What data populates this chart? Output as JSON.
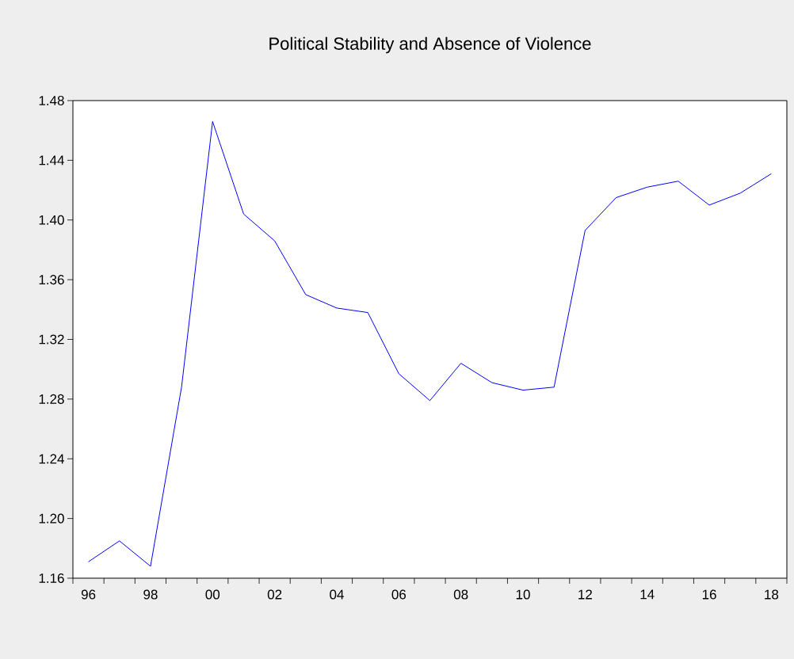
{
  "chart_data": {
    "type": "line",
    "title": "Political Stability and Absence of Violence",
    "x": [
      1996,
      1997,
      1998,
      1999,
      2000,
      2001,
      2002,
      2003,
      2004,
      2005,
      2006,
      2007,
      2008,
      2009,
      2010,
      2011,
      2012,
      2013,
      2014,
      2015,
      2016,
      2017,
      2018
    ],
    "series": [
      {
        "color": "#0000ff",
        "values": [
          1.171,
          1.185,
          1.168,
          1.288,
          1.466,
          1.404,
          1.386,
          1.35,
          1.341,
          1.338,
          1.297,
          1.279,
          1.304,
          1.291,
          1.286,
          1.288,
          1.393,
          1.415,
          1.422,
          1.426,
          1.41,
          1.418,
          1.431
        ]
      }
    ],
    "xlim": [
      1995.5,
      2018.5
    ],
    "xticks": [
      {
        "value": 1996,
        "label": "96"
      },
      {
        "value": 1998,
        "label": "98"
      },
      {
        "value": 2000,
        "label": "00"
      },
      {
        "value": 2002,
        "label": "02"
      },
      {
        "value": 2004,
        "label": "04"
      },
      {
        "value": 2006,
        "label": "06"
      },
      {
        "value": 2008,
        "label": "08"
      },
      {
        "value": 2010,
        "label": "10"
      },
      {
        "value": 2012,
        "label": "12"
      },
      {
        "value": 2014,
        "label": "14"
      },
      {
        "value": 2016,
        "label": "16"
      },
      {
        "value": 2018,
        "label": "18"
      },
      {
        "value": 1995.5,
        "label": null
      },
      {
        "value": 1996.5,
        "label": null
      },
      {
        "value": 1997.5,
        "label": null
      },
      {
        "value": 1998.5,
        "label": null
      },
      {
        "value": 1999.5,
        "label": null
      },
      {
        "value": 2000.5,
        "label": null
      },
      {
        "value": 2001.5,
        "label": null
      },
      {
        "value": 2002.5,
        "label": null
      },
      {
        "value": 2003.5,
        "label": null
      },
      {
        "value": 2004.5,
        "label": null
      },
      {
        "value": 2005.5,
        "label": null
      },
      {
        "value": 2006.5,
        "label": null
      },
      {
        "value": 2007.5,
        "label": null
      },
      {
        "value": 2008.5,
        "label": null
      },
      {
        "value": 2009.5,
        "label": null
      },
      {
        "value": 2010.5,
        "label": null
      },
      {
        "value": 2011.5,
        "label": null
      },
      {
        "value": 2012.5,
        "label": null
      },
      {
        "value": 2013.5,
        "label": null
      },
      {
        "value": 2014.5,
        "label": null
      },
      {
        "value": 2015.5,
        "label": null
      },
      {
        "value": 2016.5,
        "label": null
      },
      {
        "value": 2017.5,
        "label": null
      },
      {
        "value": 2018.5,
        "label": null
      }
    ],
    "ylim": [
      1.16,
      1.48
    ],
    "yticks": [
      1.16,
      {
        "value": 1.2,
        "label": "1.20"
      },
      1.24,
      1.28,
      1.32,
      1.36,
      {
        "value": 1.4,
        "label": "1.40"
      },
      1.44,
      1.48
    ],
    "grid": false,
    "marker": "none",
    "line_style": "solid"
  }
}
